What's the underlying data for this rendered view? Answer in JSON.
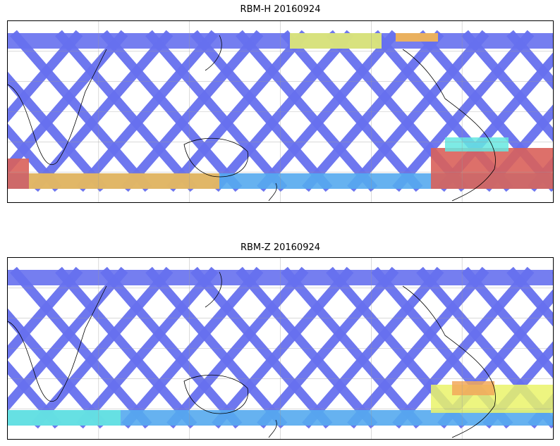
{
  "panels": [
    {
      "title": "RBM-H 20160924",
      "colors": {
        "track_base": "#6670ee",
        "track_mid": "#55aaee",
        "band_high": "#f7b74f",
        "band_peak": "#d9605a",
        "band_cyan": "#66e8e0",
        "band_yellow": "#eaf36a"
      }
    },
    {
      "title": "RBM-Z 20160924",
      "colors": {
        "track_base": "#6670ee",
        "track_mid": "#55aaee",
        "band_high": "#f7c66a",
        "band_peak": "#f2a85a",
        "band_cyan": "#66e8e0",
        "band_yellow": "#eaf36a"
      }
    }
  ],
  "map": {
    "projection": "equirectangular",
    "lon_range": [
      20,
      380
    ],
    "lat_range": [
      -60,
      60
    ],
    "grid": true,
    "coastlines": true
  }
}
